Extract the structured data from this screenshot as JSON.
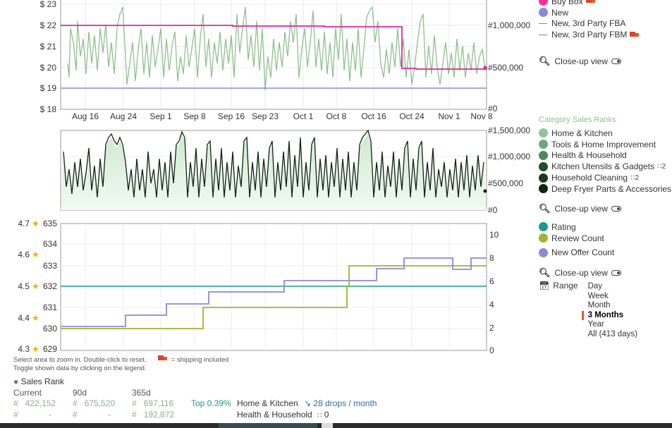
{
  "price_chart": {
    "y_labels": [
      "$ 23",
      "$ 22",
      "$ 21",
      "$ 20",
      "$ 19",
      "$ 18"
    ],
    "right_labels": [
      "#1,000,000",
      "#500,000",
      "#0"
    ],
    "x_labels": [
      "Aug 16",
      "Aug 24",
      "Sep 1",
      "Sep 8",
      "Sep 16",
      "Sep 23",
      "Oct 1",
      "Oct 8",
      "Oct 16",
      "Oct 24",
      "Nov 1",
      "Nov 8"
    ],
    "legend": [
      {
        "label": "Buy Box",
        "color": "#ff2d9e",
        "shape": "dot",
        "truck": true
      },
      {
        "label": "New",
        "color": "#8c89d8",
        "shape": "dot",
        "truck": false
      },
      {
        "label": "New, 3rd Party FBA",
        "color": "#888888",
        "shape": "dash",
        "truck": false
      },
      {
        "label": "New, 3rd Party FBM",
        "color": "#888888",
        "shape": "dash",
        "truck": true
      }
    ],
    "closeup_label": "Close-up view"
  },
  "rank_chart": {
    "right_labels": [
      "#1,500,000",
      "#1,000,000",
      "#500,000",
      "#0"
    ],
    "legend_title": "Category Sales Ranks",
    "legend": [
      {
        "label": "Home & Kitchen",
        "color": "#8fc49b",
        "hier": ""
      },
      {
        "label": "Tools & Home Improvement",
        "color": "#6aaa7a",
        "hier": ""
      },
      {
        "label": "Health & Household",
        "color": "#4a8a5a",
        "hier": ""
      },
      {
        "label": "Kitchen Utensils & Gadgets",
        "color": "#234d2b",
        "hier": "2"
      },
      {
        "label": "Household Cleaning",
        "color": "#1b3a20",
        "hier": "2"
      },
      {
        "label": "Deep Fryer Parts & Accessories",
        "color": "#0f2412",
        "hier": ""
      }
    ],
    "closeup_label": "Close-up view"
  },
  "rating_chart": {
    "rating_labels": [
      "4.7",
      "4.6",
      "4.5",
      "4.4",
      "4.3"
    ],
    "count_labels": [
      "635",
      "634",
      "633",
      "632",
      "631",
      "630",
      "629"
    ],
    "right_labels": [
      "10",
      "8",
      "6",
      "4",
      "2",
      "0"
    ],
    "legend": [
      {
        "label": "Rating",
        "color": "#1a9a8f"
      },
      {
        "label": "Review Count",
        "color": "#9fb52c"
      },
      {
        "label": "New Offer Count",
        "color": "#8c89d8"
      }
    ],
    "closeup_label": "Close-up view",
    "range_label": "Range",
    "range_options": [
      "Day",
      "Week",
      "Month",
      "3 Months",
      "Year",
      "All (413 days)"
    ],
    "range_selected": "3 Months"
  },
  "notes": {
    "zoom": "Select area to zoom in. Double-click to reset.",
    "shipping": "= shipping included",
    "toggle": "Toggle shown data by clicking on the legend."
  },
  "sales_rank": {
    "title": "Sales Rank",
    "headers": [
      "Current",
      "90d",
      "365d"
    ],
    "rows": [
      {
        "current": "422,152",
        "d90": "675,520",
        "d365": "697,116",
        "top": "Top 0.39%",
        "category": "Home & Kitchen",
        "drops": "28 drops / month"
      },
      {
        "current": "-",
        "d90": "-",
        "d365": "192,872",
        "top": "",
        "category": "Health & Household",
        "drops": "0"
      }
    ],
    "hash": "#"
  }
}
